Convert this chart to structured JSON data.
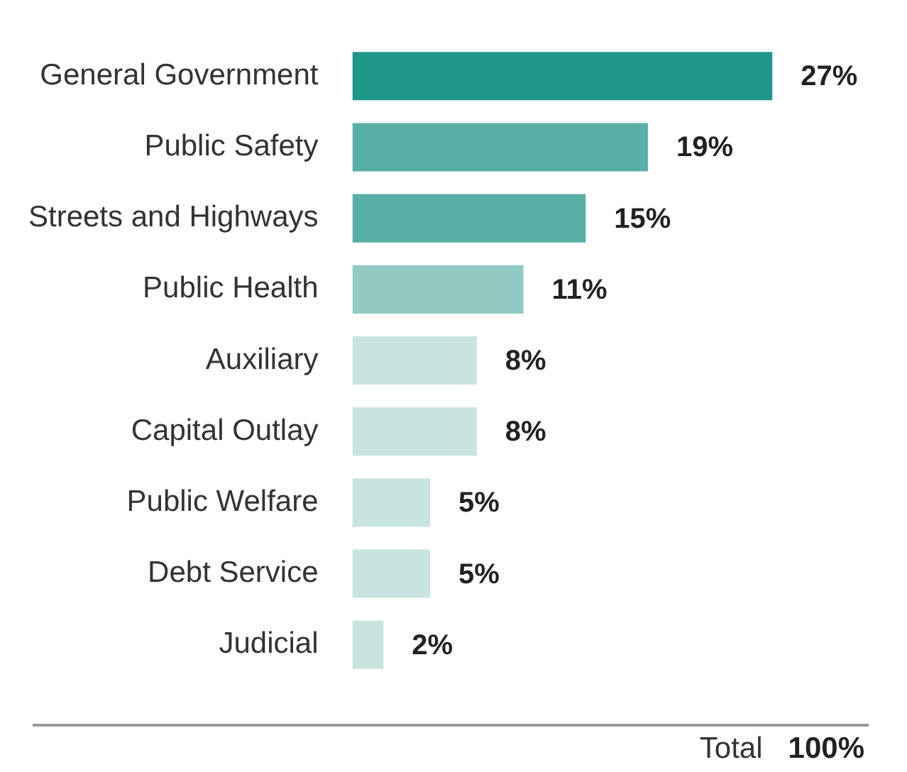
{
  "chart_data": {
    "type": "bar",
    "orientation": "horizontal",
    "categories": [
      "General Government",
      "Public Safety",
      "Streets and Highways",
      "Public Health",
      "Auxiliary",
      "Capital Outlay",
      "Public Welfare",
      "Debt Service",
      "Judicial"
    ],
    "values": [
      27,
      19,
      15,
      11,
      8,
      8,
      5,
      5,
      2
    ],
    "colors": [
      "#1f968a",
      "#57afa5",
      "#57afa5",
      "#91cac3",
      "#c8e4e0",
      "#c8e4e0",
      "#c8e4e0",
      "#c8e4e0",
      "#c8e4e0"
    ],
    "value_labels": [
      "27%",
      "19%",
      "15%",
      "11%",
      "8%",
      "8%",
      "5%",
      "5%",
      "2%"
    ],
    "grid": false,
    "legend": false,
    "annotations": [
      "Total",
      "100%"
    ]
  }
}
